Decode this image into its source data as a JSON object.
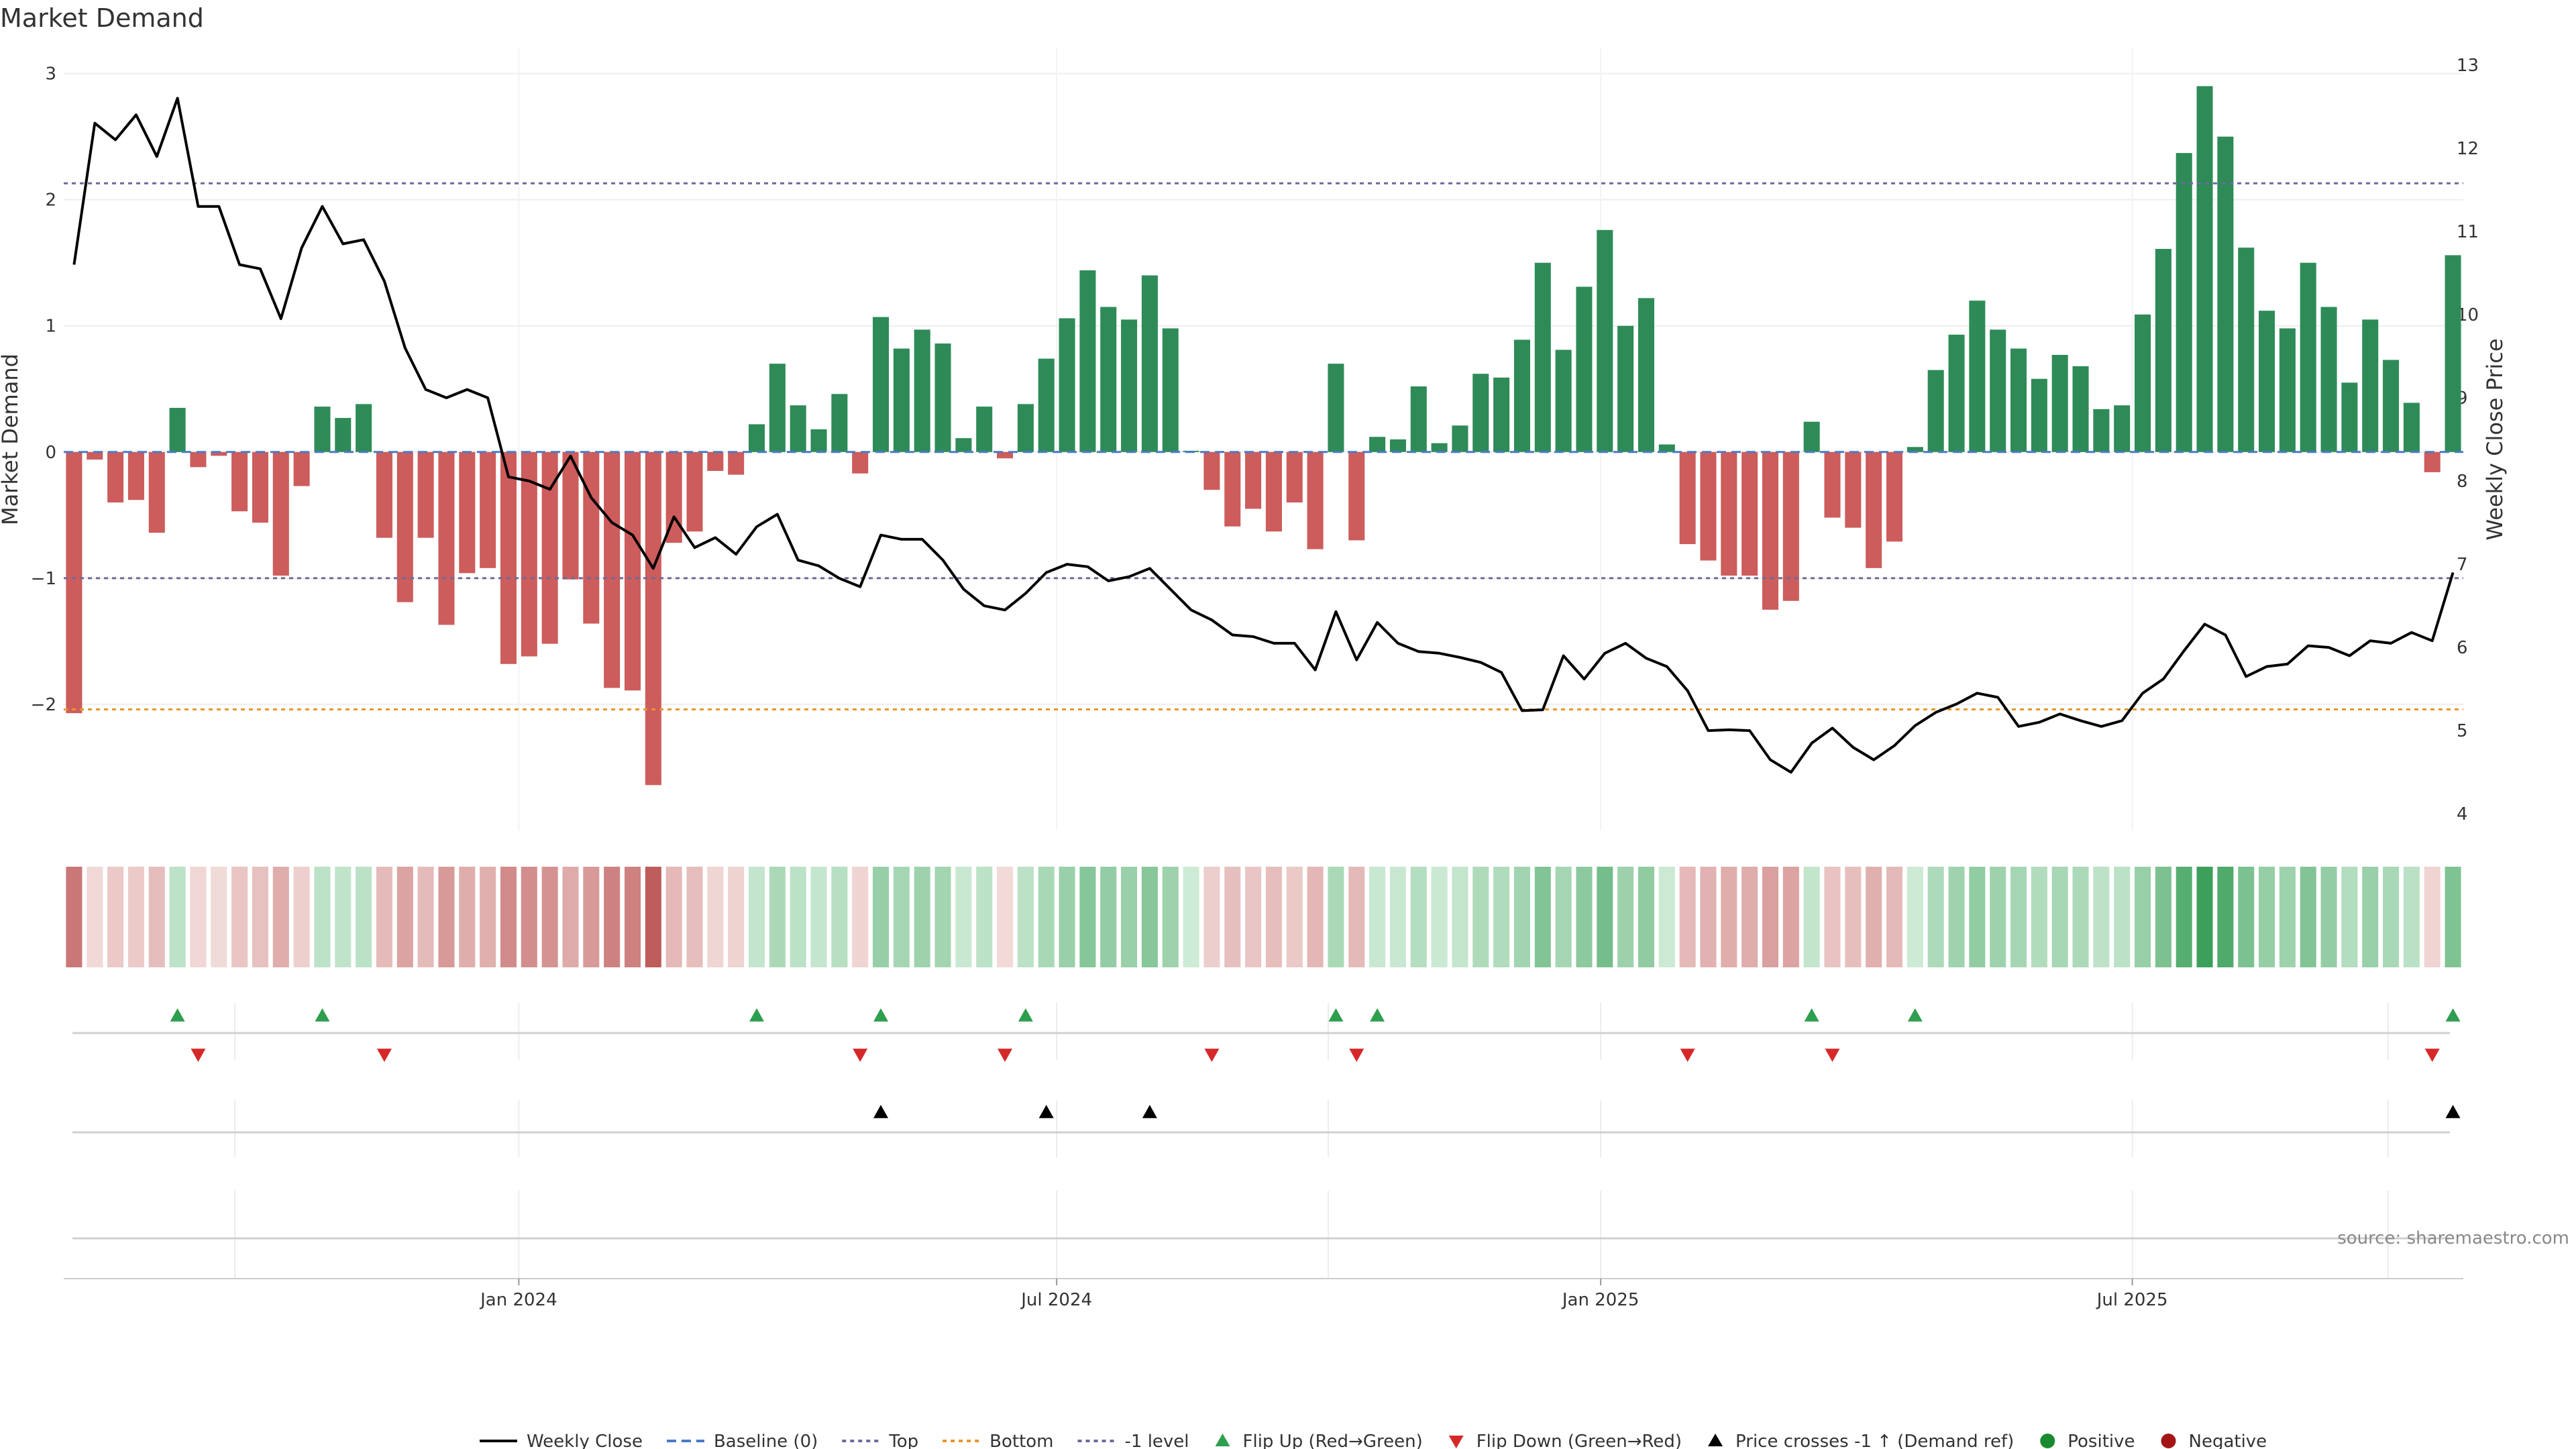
{
  "chart_data": {
    "type": "bar",
    "title": "Market Demand",
    "ylabel_left": "Market Demand",
    "ylabel_right": "Weekly Close Price",
    "source": "source: sharemaestro.com",
    "ylim_left": [
      -3,
      3.2
    ],
    "ylim_right": [
      3.8,
      13.2
    ],
    "yticks_left": [
      {
        "v": 3,
        "label": "3"
      },
      {
        "v": 2,
        "label": "2"
      },
      {
        "v": 1,
        "label": "1"
      },
      {
        "v": 0,
        "label": "0"
      },
      {
        "v": -1,
        "label": "−1"
      },
      {
        "v": -2,
        "label": "−2"
      }
    ],
    "yticks_right": [
      {
        "v": 4,
        "label": "4"
      },
      {
        "v": 5,
        "label": "5"
      },
      {
        "v": 6,
        "label": "6"
      },
      {
        "v": 7,
        "label": "7"
      },
      {
        "v": 8,
        "label": "8"
      },
      {
        "v": 9,
        "label": "9"
      },
      {
        "v": 10,
        "label": "10"
      },
      {
        "v": 11,
        "label": "11"
      },
      {
        "v": 12,
        "label": "12"
      },
      {
        "v": 13,
        "label": "13"
      }
    ],
    "xticks": [
      {
        "week": 21.5,
        "label": "Jan 2024"
      },
      {
        "week": 47.5,
        "label": "Jul 2024"
      },
      {
        "week": 73.8,
        "label": "Jan 2025"
      },
      {
        "week": 99.5,
        "label": "Jul 2025"
      }
    ],
    "reference_lines": {
      "top": 2.13,
      "bottom": -2.04,
      "minus_one": -1,
      "baseline": 0
    },
    "demand": [
      -2.07,
      -0.06,
      -0.4,
      -0.38,
      -0.64,
      0.35,
      -0.12,
      -0.03,
      -0.47,
      -0.56,
      -0.98,
      -0.27,
      0.36,
      0.27,
      0.38,
      -0.68,
      -1.19,
      -0.68,
      -1.37,
      -0.96,
      -0.92,
      -1.68,
      -1.62,
      -1.52,
      -1.01,
      -1.36,
      -1.87,
      -1.89,
      -2.64,
      -0.72,
      -0.63,
      -0.15,
      -0.18,
      0.22,
      0.7,
      0.37,
      0.18,
      0.46,
      -0.17,
      1.07,
      0.82,
      0.97,
      0.86,
      0.11,
      0.36,
      -0.05,
      0.38,
      0.74,
      1.06,
      1.44,
      1.15,
      1.05,
      1.4,
      0.98,
      0.01,
      -0.3,
      -0.59,
      -0.45,
      -0.63,
      -0.4,
      -0.77,
      0.7,
      -0.7,
      0.12,
      0.1,
      0.52,
      0.07,
      0.21,
      0.62,
      0.59,
      0.89,
      1.5,
      0.81,
      1.31,
      1.76,
      1.0,
      1.22,
      0.06,
      -0.73,
      -0.86,
      -0.98,
      -0.98,
      -1.25,
      -1.18,
      0.24,
      -0.52,
      -0.6,
      -0.92,
      -0.71,
      0.04,
      0.65,
      0.93,
      1.2,
      0.97,
      0.82,
      0.58,
      0.77,
      0.68,
      0.34,
      0.37,
      1.09,
      1.61,
      2.37,
      2.9,
      2.5,
      1.62,
      1.12,
      0.98,
      1.5,
      1.15,
      0.55,
      1.05,
      0.73,
      0.39,
      -0.16,
      1.56
    ],
    "weekly_close": [
      10.6,
      12.3,
      12.1,
      12.4,
      11.9,
      12.6,
      11.3,
      11.3,
      10.6,
      10.55,
      9.95,
      10.8,
      11.3,
      10.85,
      10.9,
      10.4,
      9.6,
      9.1,
      9.0,
      9.1,
      9.0,
      8.05,
      8.0,
      7.9,
      8.3,
      7.8,
      7.5,
      7.35,
      6.95,
      7.57,
      7.2,
      7.32,
      7.12,
      7.45,
      7.6,
      7.05,
      6.98,
      6.83,
      6.73,
      7.35,
      7.3,
      7.3,
      7.05,
      6.7,
      6.5,
      6.45,
      6.65,
      6.9,
      7.0,
      6.97,
      6.8,
      6.85,
      6.95,
      6.7,
      6.45,
      6.33,
      6.15,
      6.13,
      6.05,
      6.05,
      5.73,
      6.43,
      5.85,
      6.3,
      6.05,
      5.95,
      5.93,
      5.88,
      5.82,
      5.7,
      5.24,
      5.25,
      5.9,
      5.62,
      5.93,
      6.05,
      5.87,
      5.77,
      5.48,
      5.0,
      5.01,
      5.0,
      4.65,
      4.5,
      4.85,
      5.03,
      4.8,
      4.65,
      4.82,
      5.06,
      5.22,
      5.32,
      5.45,
      5.4,
      5.05,
      5.1,
      5.2,
      5.12,
      5.05,
      5.12,
      5.45,
      5.62,
      5.96,
      6.28,
      6.15,
      5.65,
      5.77,
      5.8,
      6.02,
      6.0,
      5.9,
      6.08,
      6.05,
      6.18,
      6.08,
      6.9
    ],
    "flip_up_weeks": [
      5,
      12,
      33,
      39,
      46,
      61,
      63,
      84,
      89,
      115
    ],
    "flip_down_weeks": [
      6,
      15,
      38,
      45,
      55,
      62,
      78,
      85,
      114
    ],
    "price_cross_weeks": [
      39,
      47,
      52,
      115
    ],
    "legend": [
      "Weekly Close",
      "Baseline (0)",
      "Top",
      "Bottom",
      "-1 level",
      "Flip Up (Red→Green)",
      "Flip Down (Green→Red)",
      "Price crosses -1 ↑ (Demand ref)",
      "Positive",
      "Negative"
    ],
    "colors": {
      "positive": "#2e8b57",
      "negative": "#cd5c5c",
      "price": "#000000",
      "top": "#6b6b9a",
      "bottom": "#e8952b",
      "minus_one": "#6b6b9a",
      "baseline": "#4a7bc8",
      "flip_up": "#2e9e4f",
      "flip_down": "#d62828",
      "cross": "#000000",
      "pos_marker": "#1a8a2e",
      "neg_marker": "#a31515"
    }
  }
}
